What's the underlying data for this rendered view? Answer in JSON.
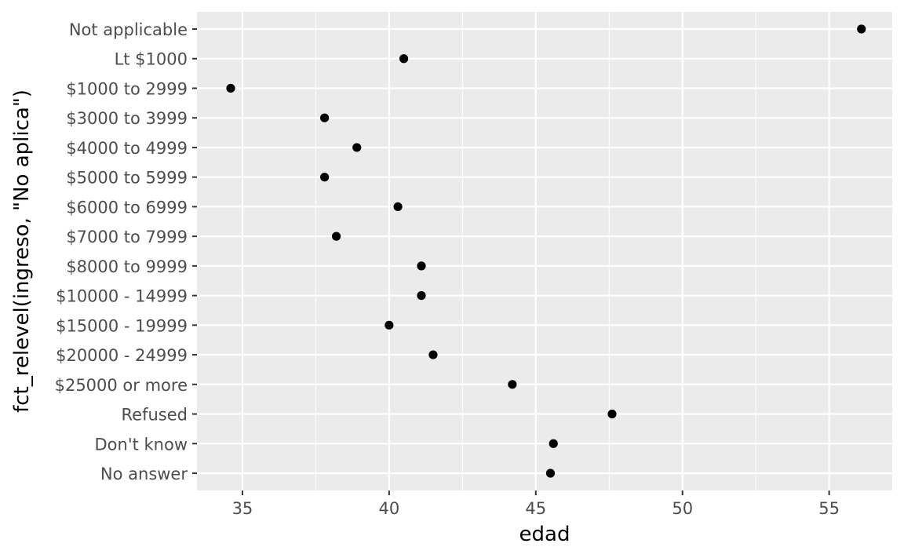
{
  "chart_data": {
    "type": "scatter",
    "xlabel": "edad",
    "ylabel": "fct_relevel(ingreso, \"No aplica\")",
    "xlim": [
      33.45,
      57.15
    ],
    "x_ticks": [
      35,
      40,
      45,
      50,
      55
    ],
    "grid": true,
    "colors": {
      "panel_background": "#ebebeb",
      "grid": "#ffffff",
      "point": "#000000",
      "tick_label": "#4d4d4d"
    },
    "categories": [
      "Not applicable",
      "Lt $1000",
      "$1000 to 2999",
      "$3000 to 3999",
      "$4000 to 4999",
      "$5000 to 5999",
      "$6000 to 6999",
      "$7000 to 7999",
      "$8000 to 9999",
      "$10000 - 14999",
      "$15000 - 19999",
      "$20000 - 24999",
      "$25000 or more",
      "Refused",
      "Don't know",
      "No answer"
    ],
    "values": [
      56.1,
      40.5,
      34.6,
      37.8,
      38.9,
      37.8,
      40.3,
      38.2,
      41.1,
      41.1,
      40.0,
      41.5,
      44.2,
      47.6,
      45.6,
      45.5
    ]
  }
}
